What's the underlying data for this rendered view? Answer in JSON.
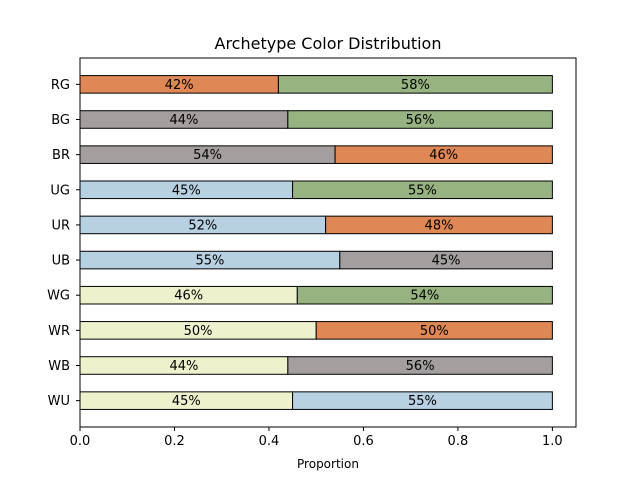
{
  "chart_data": {
    "type": "bar",
    "orientation": "horizontal",
    "stacked": true,
    "title": "Archetype Color Distribution",
    "xlabel": "Proportion",
    "ylabel": "",
    "xlim": [
      0.0,
      1.05
    ],
    "xticks": [
      "0.0",
      "0.2",
      "0.4",
      "0.6",
      "0.8",
      "1.0"
    ],
    "grid": false,
    "legend": "none",
    "colors": {
      "W": "#eef2cc",
      "U": "#b7d0e2",
      "B": "#a49e9e",
      "R": "#e08855",
      "G": "#97b381"
    },
    "categories": [
      "WU",
      "WB",
      "WR",
      "WG",
      "UB",
      "UR",
      "UG",
      "BR",
      "BG",
      "RG"
    ],
    "bars": [
      {
        "label": "WU",
        "segments": [
          {
            "color": "W",
            "value": 0.45,
            "text": "45%"
          },
          {
            "color": "U",
            "value": 0.55,
            "text": "55%"
          }
        ]
      },
      {
        "label": "WB",
        "segments": [
          {
            "color": "W",
            "value": 0.44,
            "text": "44%"
          },
          {
            "color": "B",
            "value": 0.56,
            "text": "56%"
          }
        ]
      },
      {
        "label": "WR",
        "segments": [
          {
            "color": "W",
            "value": 0.5,
            "text": "50%"
          },
          {
            "color": "R",
            "value": 0.5,
            "text": "50%"
          }
        ]
      },
      {
        "label": "WG",
        "segments": [
          {
            "color": "W",
            "value": 0.46,
            "text": "46%"
          },
          {
            "color": "G",
            "value": 0.54,
            "text": "54%"
          }
        ]
      },
      {
        "label": "UB",
        "segments": [
          {
            "color": "U",
            "value": 0.55,
            "text": "55%"
          },
          {
            "color": "B",
            "value": 0.45,
            "text": "45%"
          }
        ]
      },
      {
        "label": "UR",
        "segments": [
          {
            "color": "U",
            "value": 0.52,
            "text": "52%"
          },
          {
            "color": "R",
            "value": 0.48,
            "text": "48%"
          }
        ]
      },
      {
        "label": "UG",
        "segments": [
          {
            "color": "U",
            "value": 0.45,
            "text": "45%"
          },
          {
            "color": "G",
            "value": 0.55,
            "text": "55%"
          }
        ]
      },
      {
        "label": "BR",
        "segments": [
          {
            "color": "B",
            "value": 0.54,
            "text": "54%"
          },
          {
            "color": "R",
            "value": 0.46,
            "text": "46%"
          }
        ]
      },
      {
        "label": "BG",
        "segments": [
          {
            "color": "B",
            "value": 0.44,
            "text": "44%"
          },
          {
            "color": "G",
            "value": 0.56,
            "text": "56%"
          }
        ]
      },
      {
        "label": "RG",
        "segments": [
          {
            "color": "R",
            "value": 0.42,
            "text": "42%"
          },
          {
            "color": "G",
            "value": 0.58,
            "text": "58%"
          }
        ]
      }
    ]
  }
}
